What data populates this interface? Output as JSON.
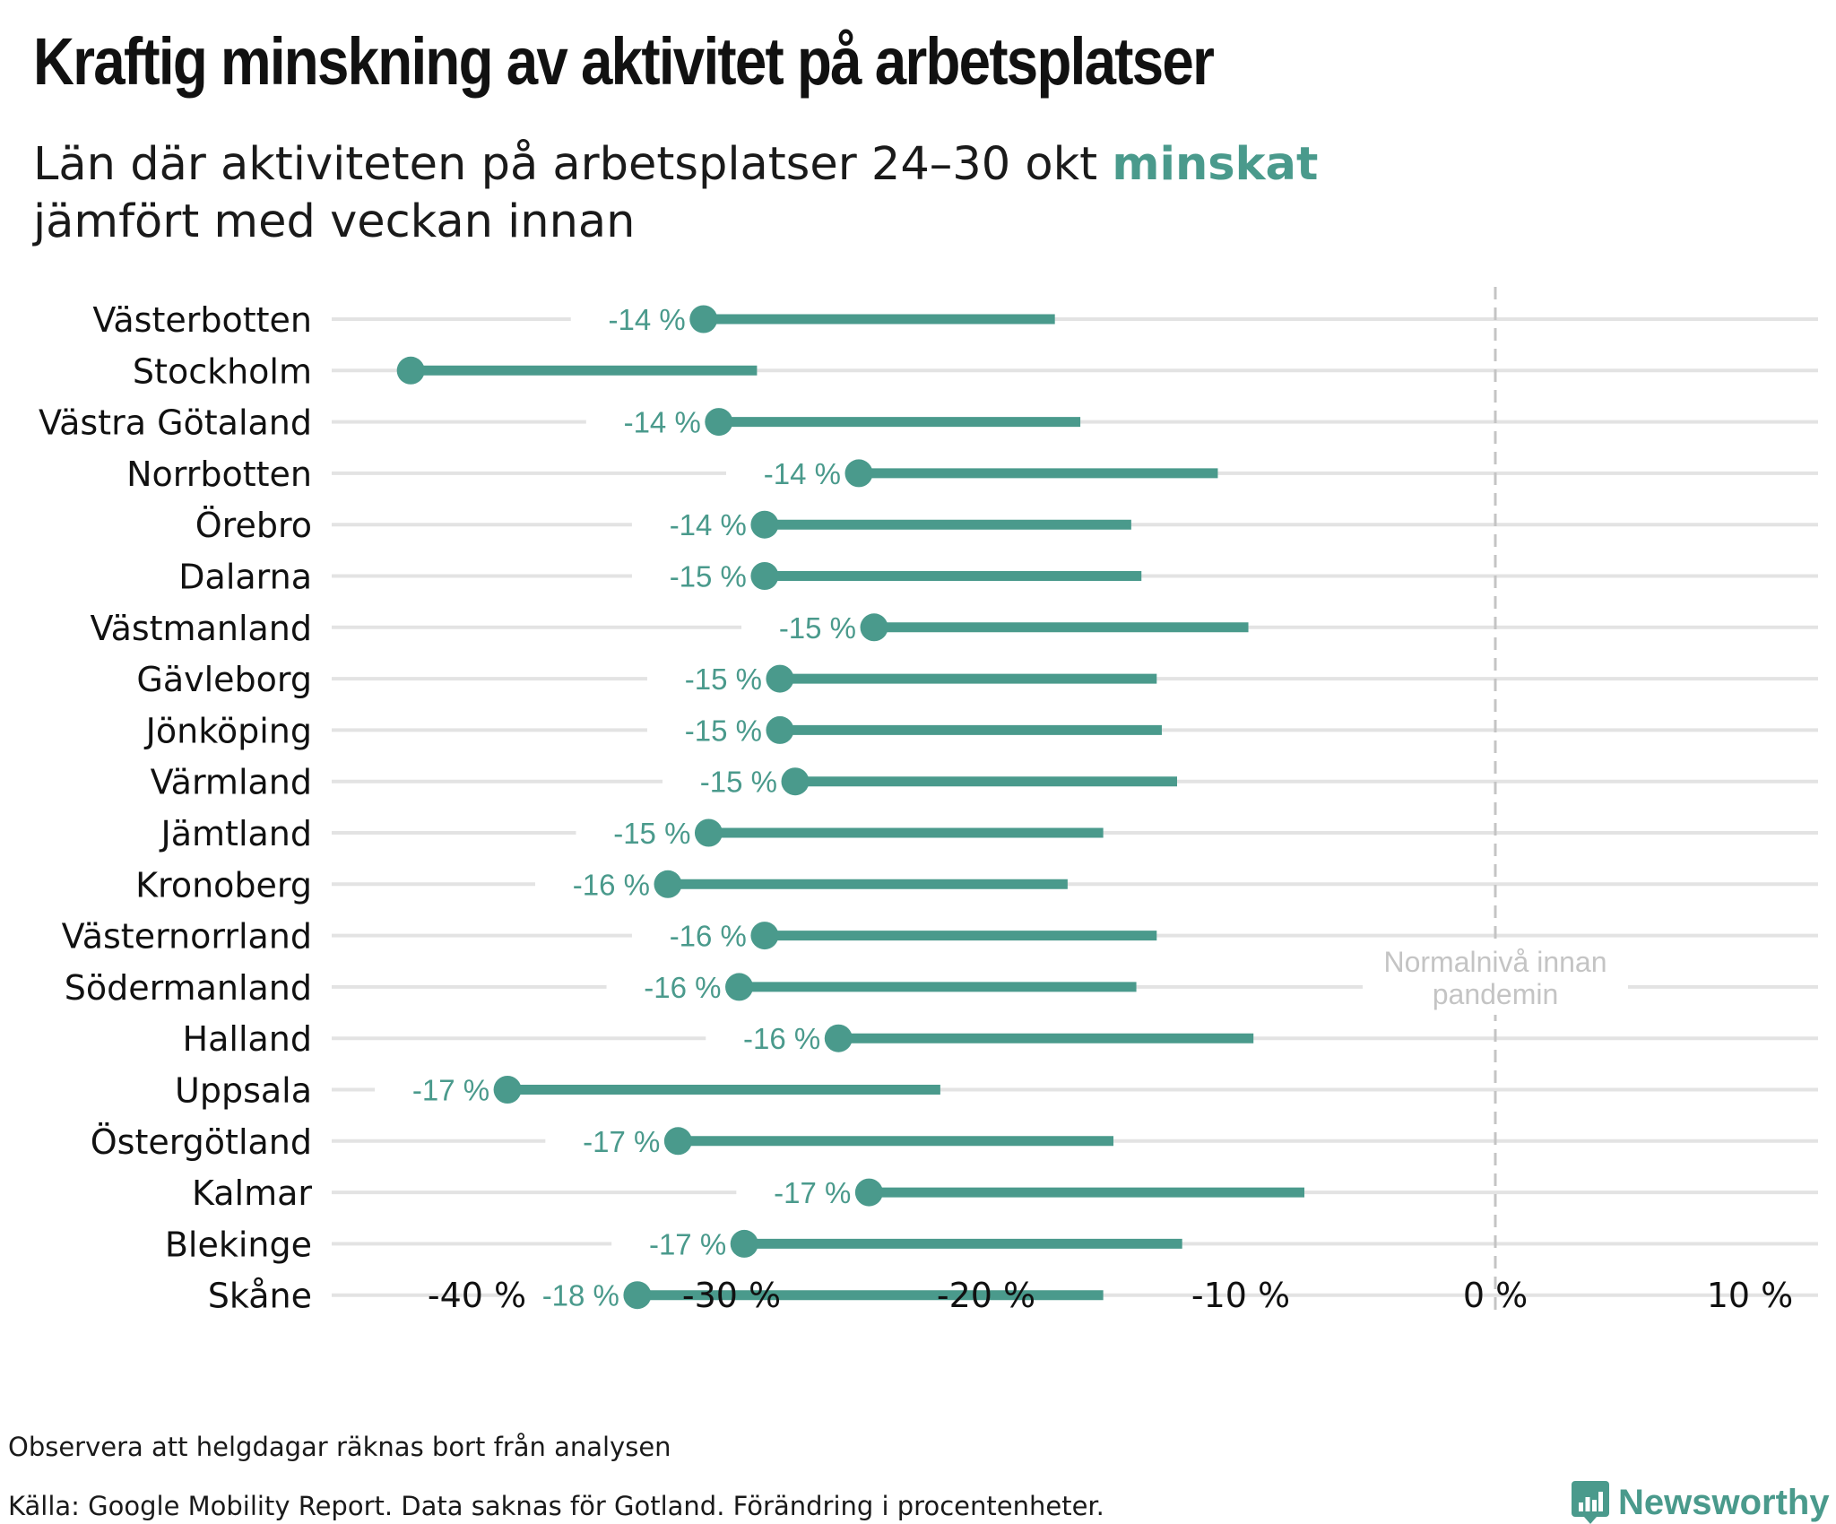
{
  "title": "Kraftig minskning av aktivitet på arbetsplatser",
  "subtitle": {
    "before": "Län där aktiviteten på arbetsplatser 24–30 okt ",
    "highlight": "minskat",
    "after": "jämfört med veckan innan"
  },
  "footer": {
    "note": "Observera att helgdagar räknas bort från analysen",
    "source": "Källa: Google Mobility Report. Data saknas för Gotland. Förändring i procentenheter."
  },
  "brand": {
    "name": "Newsworthy",
    "icon": "newsworthy-logo-icon"
  },
  "colors": {
    "accent": "#4a9a8c",
    "grid": "#e3e3e3",
    "reference": "#c4c4c4",
    "text": "#111111"
  },
  "chart_data": {
    "type": "dumbbell",
    "categories": [
      "Västerbotten",
      "Stockholm",
      "Västra Götaland",
      "Norrbotten",
      "Örebro",
      "Dalarna",
      "Västmanland",
      "Gävleborg",
      "Jönköping",
      "Värmland",
      "Jämtland",
      "Kronoberg",
      "Västernorrland",
      "Södermanland",
      "Halland",
      "Uppsala",
      "Östergötland",
      "Kalmar",
      "Blekinge",
      "Skåne"
    ],
    "series": [
      {
        "values": [
          -17.3,
          -29.0,
          -16.3,
          -10.9,
          -14.3,
          -13.9,
          -9.7,
          -13.3,
          -13.1,
          -12.5,
          -15.4,
          -16.8,
          -13.3,
          -14.1,
          -9.5,
          -21.8,
          -15.0,
          -7.5,
          -12.3,
          -15.4
        ]
      },
      {
        "values": [
          -31.1,
          -42.6,
          -30.5,
          -25.0,
          -28.7,
          -28.7,
          -24.4,
          -28.1,
          -28.1,
          -27.5,
          -30.9,
          -32.5,
          -28.7,
          -29.7,
          -25.8,
          -38.8,
          -32.1,
          -24.6,
          -29.5,
          -33.7
        ]
      }
    ],
    "change_labels": [
      "-14 %",
      "",
      "-14 %",
      "-14 %",
      "-14 %",
      "-15 %",
      "-15 %",
      "-15 %",
      "-15 %",
      "-15 %",
      "-15 %",
      "-16 %",
      "-16 %",
      "-16 %",
      "-16 %",
      "-17 %",
      "-17 %",
      "-17 %",
      "-17 %",
      "-18 %"
    ],
    "x_ticks": [
      -40,
      -30,
      -20,
      -10,
      0,
      10
    ],
    "x_tick_labels": [
      "-40 %",
      "-30 %",
      "-20 %",
      "-10 %",
      "0 %",
      "10 %"
    ],
    "xlim": [
      -46,
      12.5
    ],
    "reference_line": {
      "x": 0,
      "label": "Normalnivå innan pandemin",
      "label_lines": [
        "Normalnivå innan",
        "pandemin"
      ]
    },
    "grid": true
  }
}
